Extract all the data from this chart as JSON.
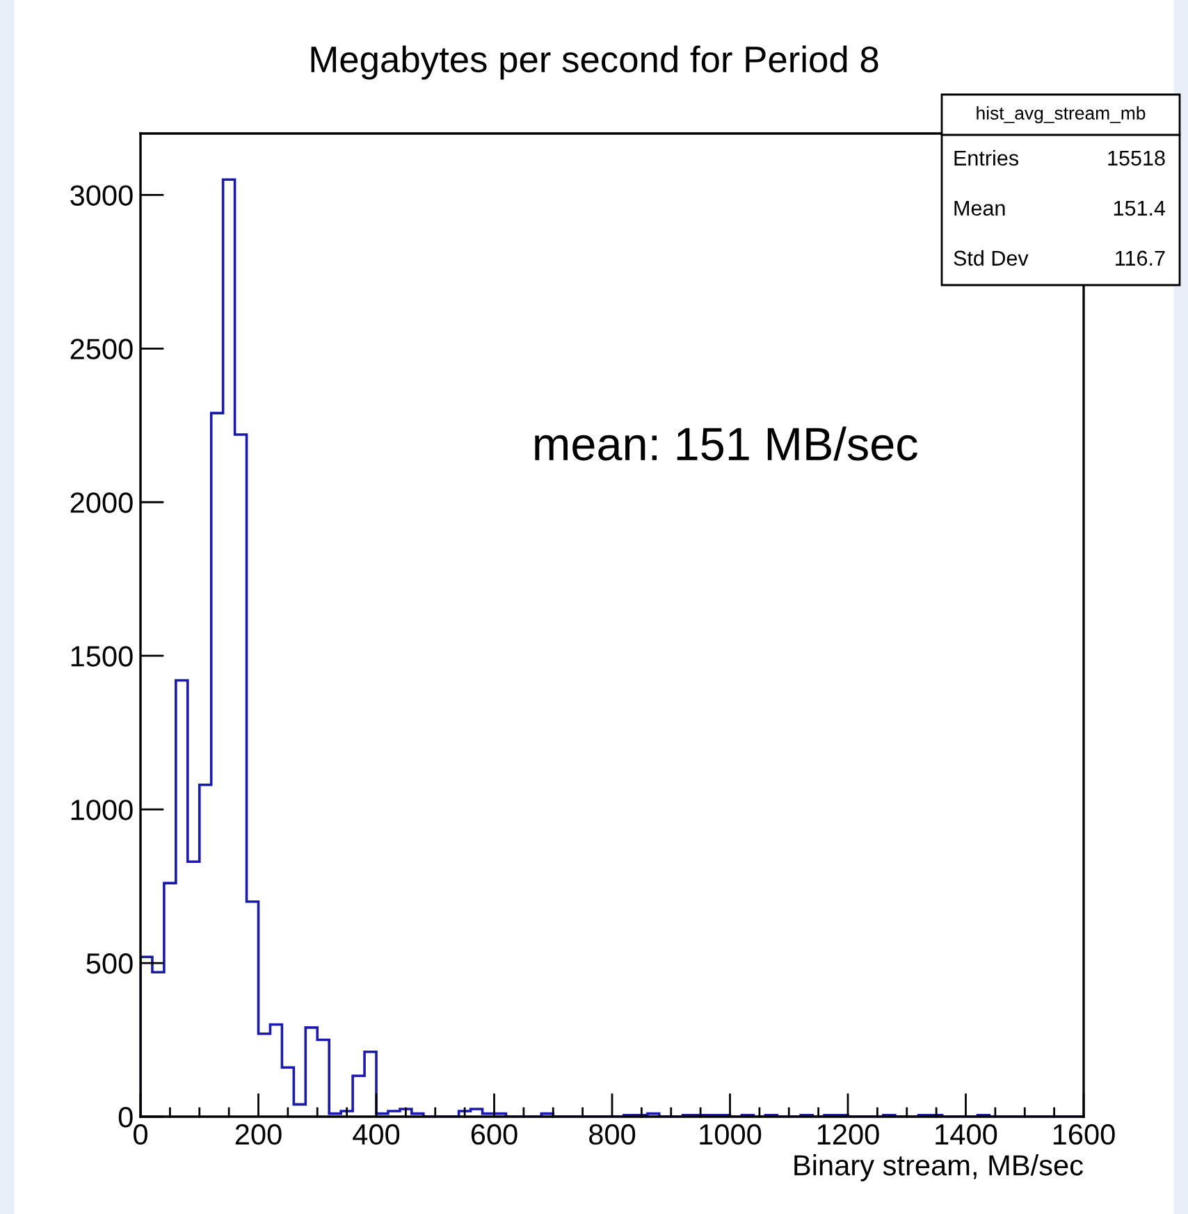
{
  "chart_data": {
    "type": "histogram",
    "title": "Megabytes per second for Period 8",
    "xlabel": "Binary stream, MB/sec",
    "bins": [
      0,
      20,
      40,
      60,
      80,
      100,
      120,
      140,
      160,
      180,
      200,
      220,
      240,
      260,
      280,
      300,
      320,
      340,
      360,
      380,
      400,
      420,
      440,
      460,
      480,
      500,
      520,
      540,
      560,
      580,
      600,
      620,
      640,
      660,
      680,
      700,
      720,
      740,
      760,
      780,
      800,
      820,
      840,
      860,
      880,
      900,
      920,
      940,
      960,
      980,
      1000,
      1020,
      1040,
      1060,
      1080,
      1100,
      1120,
      1140,
      1160,
      1180,
      1200,
      1220,
      1240,
      1260,
      1280,
      1300,
      1320,
      1340,
      1360,
      1380,
      1400,
      1420,
      1440,
      1460,
      1480,
      1500,
      1520,
      1540,
      1560,
      1580,
      1600
    ],
    "values": [
      520,
      470,
      760,
      1420,
      830,
      1080,
      2290,
      3050,
      2220,
      700,
      270,
      300,
      160,
      40,
      290,
      250,
      10,
      18,
      133,
      211,
      10,
      18,
      25,
      10,
      0,
      0,
      0,
      18,
      25,
      10,
      10,
      0,
      0,
      0,
      10,
      0,
      0,
      0,
      0,
      0,
      0,
      5,
      5,
      10,
      0,
      0,
      5,
      5,
      5,
      5,
      0,
      5,
      0,
      5,
      0,
      0,
      5,
      0,
      5,
      5,
      0,
      0,
      0,
      5,
      0,
      0,
      5,
      5,
      0,
      0,
      0,
      5,
      0,
      0,
      0,
      0,
      0,
      0,
      0,
      0
    ],
    "color": "#1a1aad",
    "xlim": [
      0,
      1600
    ],
    "xticks": [
      0,
      200,
      400,
      600,
      800,
      1000,
      1200,
      1400,
      1600
    ],
    "ylim": [
      0,
      3200
    ],
    "yticks": [
      0,
      500,
      1000,
      1500,
      2000,
      2500,
      3000
    ],
    "grid": false,
    "annotations": [
      "mean: 151 MB/sec",
      "hist_avg_stream_mb",
      "Entries",
      "15518",
      "Mean",
      "151.4",
      "Std Dev",
      "116.7"
    ]
  }
}
